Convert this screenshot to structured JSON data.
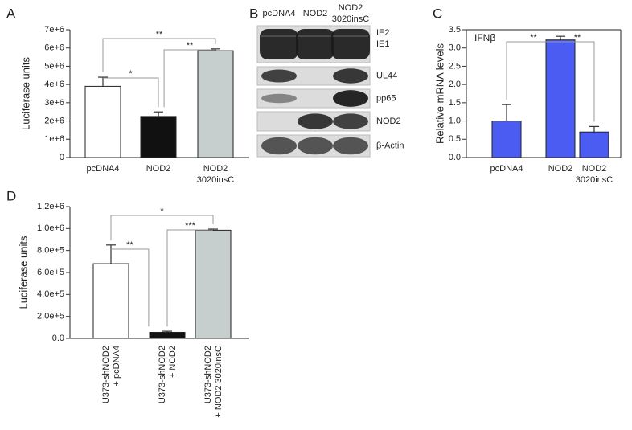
{
  "chart_data": [
    {
      "type": "bar",
      "panel": "A",
      "ylabel": "Luciferase units",
      "categories": [
        "pcDNA4",
        "NOD2",
        "NOD2\n3020insC"
      ],
      "values": [
        3900000,
        2250000,
        5850000
      ],
      "errors": [
        500000,
        250000,
        100000
      ],
      "colors": [
        "#ffffff",
        "#111111",
        "#c6cfce"
      ],
      "ylim": [
        0,
        7000000
      ],
      "yticks": [
        0,
        {
          "value": 1000000,
          "label": "1e+6"
        },
        {
          "value": 2000000,
          "label": "2e+6"
        },
        {
          "value": 3000000,
          "label": "3e+6"
        },
        {
          "value": 4000000,
          "label": "4e+6"
        },
        {
          "value": 5000000,
          "label": "5e+6"
        },
        {
          "value": 6000000,
          "label": "6e+6"
        },
        {
          "value": 7000000,
          "label": "7e+6"
        }
      ],
      "annotations": [
        "**",
        "*",
        "**"
      ]
    },
    {
      "type": "bar",
      "panel": "C",
      "ylabel": "Relative mRNA levels",
      "label": "IFNβ",
      "categories": [
        "pcDNA4",
        "NOD2",
        "NOD2\n3020insC"
      ],
      "values": [
        1.0,
        3.22,
        0.7
      ],
      "errors": [
        0.45,
        0.1,
        0.15
      ],
      "colors": [
        "#4a5cf2",
        "#4a5cf2",
        "#4a5cf2"
      ],
      "ylim": [
        0,
        3.5
      ],
      "yticks": [
        {
          "value": 0,
          "label": "0.0"
        },
        0.5,
        {
          "value": 1,
          "label": "1.0"
        },
        1.5,
        {
          "value": 2,
          "label": "2.0"
        },
        2.5,
        {
          "value": 3,
          "label": "3.0"
        },
        3.5
      ],
      "annotations": [
        "**",
        "**"
      ]
    },
    {
      "type": "bar",
      "panel": "D",
      "ylabel": "Luciferase units",
      "categories": [
        "U373-shNOD2\n+ pcDNA4",
        "U373-shNOD2\n+ NOD2",
        "U373-shNOD2\n+ NOD2 3020insC"
      ],
      "values": [
        680000,
        55000,
        985000
      ],
      "errors": [
        170000,
        10000,
        10000
      ],
      "colors": [
        "#ffffff",
        "#111111",
        "#c6cfce"
      ],
      "ylim": [
        0,
        1200000
      ],
      "yticks": [
        {
          "value": 0,
          "label": "0.0"
        },
        {
          "value": 200000,
          "label": "2.0e+5"
        },
        {
          "value": 400000,
          "label": "4.0e+5"
        },
        {
          "value": 600000,
          "label": "6.0e+5"
        },
        {
          "value": 800000,
          "label": "8.0e+5"
        },
        {
          "value": 1000000,
          "label": "1.0e+6"
        },
        {
          "value": 1200000,
          "label": "1.2e+6"
        }
      ],
      "annotations": [
        "*",
        "**",
        "***"
      ]
    }
  ],
  "blot": {
    "panel": "B",
    "columns": [
      "pcDNA4",
      "NOD2",
      "NOD2\n3020insC"
    ],
    "rows": [
      "IE2\nIE1",
      "UL44",
      "pp65",
      "NOD2",
      "β-Actin"
    ]
  }
}
